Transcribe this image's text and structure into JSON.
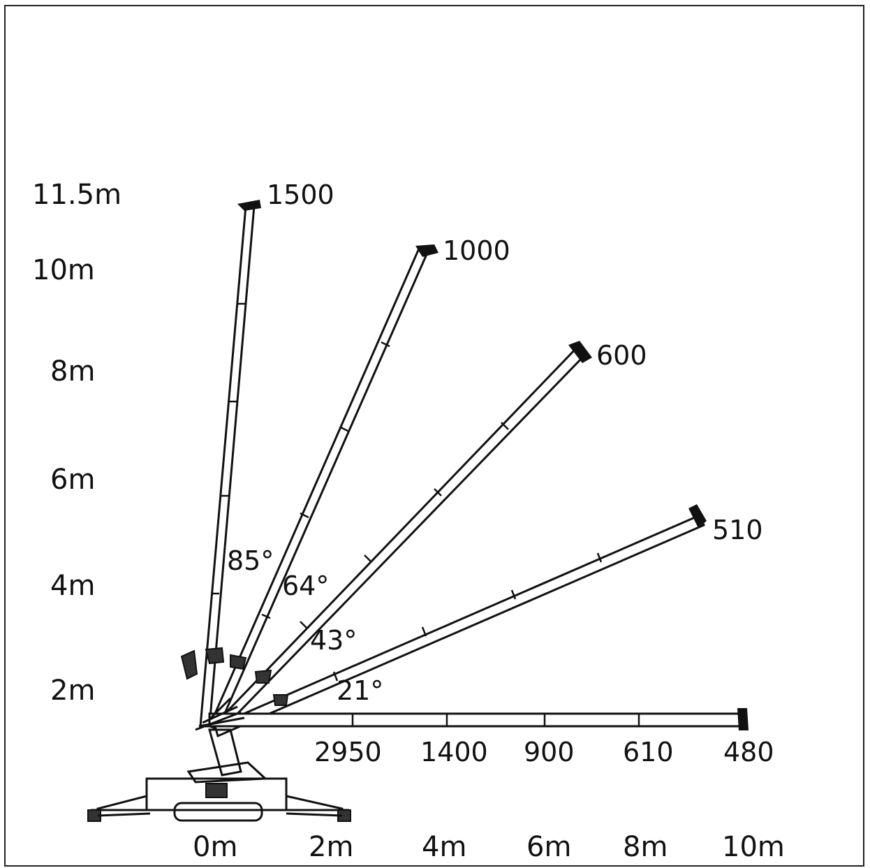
{
  "colors": {
    "line": "#111111",
    "background": "#ffffff",
    "frame": "#222222"
  },
  "y_axis_labels": [
    "11.5m",
    "10m",
    "8m",
    "6m",
    "4m",
    "2m"
  ],
  "x_axis_labels": [
    "0m",
    "2m",
    "4m",
    "6m",
    "8m",
    "10m"
  ],
  "booms": [
    {
      "angle_label": "85°",
      "load_label": "1500"
    },
    {
      "angle_label": "64°",
      "load_label": "1000"
    },
    {
      "angle_label": "43°",
      "load_label": "600"
    },
    {
      "angle_label": "21°",
      "load_label": "510"
    },
    {
      "angle_label": "",
      "load_label": "480"
    }
  ],
  "horizontal_loads": [
    "2950",
    "1400",
    "900",
    "610",
    "480"
  ]
}
